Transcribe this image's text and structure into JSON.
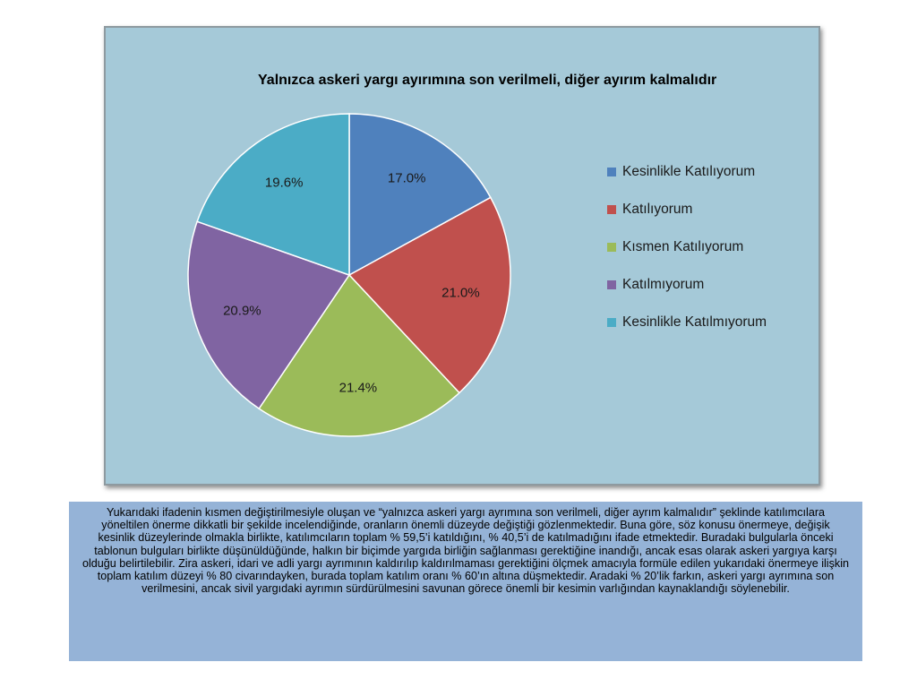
{
  "chart_data": {
    "type": "pie",
    "title": "Yalnızca askeri yargı ayırımına son verilmeli, diğer ayırım kalmalıdır",
    "slices": [
      {
        "name": "Kesinlikle Katılıyorum",
        "value": 17.0,
        "label": "17.0%",
        "color": "#4f81bd"
      },
      {
        "name": "Katılıyorum",
        "value": 21.0,
        "label": "21.0%",
        "color": "#c0504d"
      },
      {
        "name": "Kısmen Katılıyorum",
        "value": 21.4,
        "label": "21.4%",
        "color": "#9bbb59"
      },
      {
        "name": "Katılmıyorum",
        "value": 20.9,
        "label": "20.9%",
        "color": "#8064a2"
      },
      {
        "name": "Kesinlikle Katılmıyorum",
        "value": 19.6,
        "label": "19.6%",
        "color": "#4bacc6"
      }
    ],
    "legend_position": "right",
    "start_angle": "12 o'clock",
    "direction": "clockwise"
  },
  "background_color": "#a5c9d8",
  "text_box": {
    "background_color": "#95b3d7",
    "text": "Yukarıdaki ifadenin kısmen değiştirilmesiyle oluşan ve “yalnızca askeri yargı ayrımına son verilmeli, diğer ayrım kalmalıdır” şeklinde katılımcılara yöneltilen önerme dikkatli bir şekilde incelendiğinde, oranların önemli düzeyde değiştiği gözlenmektedir. Buna göre, söz konusu önermeye, değişik kesinlik düzeylerinde olmakla birlikte, katılımcıların toplam % 59,5’i katıldığını, % 40,5’i de katılmadığını ifade etmektedir. Buradaki bulgularla önceki tablonun bulguları birlikte düşünüldüğünde, halkın bir biçimde yargıda birliğin sağlanması gerektiğine inandığı, ancak esas olarak askeri yargıya karşı olduğu belirtilebilir. Zira askeri, idari ve adli yargı ayrımının kaldırılıp kaldırılmaması gerektiğini ölçmek amacıyla formüle edilen yukarıdaki önermeye ilişkin toplam katılım düzeyi % 80 civarındayken, burada toplam katılım oranı % 60’ın altına düşmektedir. Aradaki % 20’lik farkın, askeri yargı ayrımına son verilmesini, ancak sivil yargıdaki ayrımın sürdürülmesini savunan görece önemli bir kesimin varlığından kaynaklandığı söylenebilir."
  }
}
